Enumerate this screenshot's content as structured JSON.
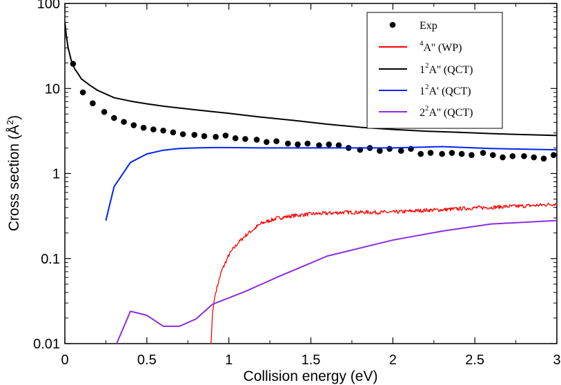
{
  "chart_data": {
    "type": "line",
    "xlabel": "Collision energy (eV)",
    "ylabel": "Cross section (Å",
    "ylabel_sup": "2",
    "ylabel_close": ")",
    "xlim": [
      0,
      3
    ],
    "ylim": [
      0.01,
      100
    ],
    "yscale": "log",
    "legend_position": "top-right",
    "x_ticks": [
      {
        "value": 0,
        "label": "0"
      },
      {
        "value": 0.5,
        "label": "0.5"
      },
      {
        "value": 1,
        "label": "1"
      },
      {
        "value": 1.5,
        "label": "1.5"
      },
      {
        "value": 2,
        "label": "2"
      },
      {
        "value": 2.5,
        "label": "2.5"
      },
      {
        "value": 3,
        "label": "3"
      }
    ],
    "y_ticks": [
      {
        "value": 0.01,
        "label": "0.01"
      },
      {
        "value": 0.1,
        "label": "0.1"
      },
      {
        "value": 1,
        "label": "1"
      },
      {
        "value": 10,
        "label": "10"
      },
      {
        "value": 100,
        "label": "100"
      }
    ],
    "series": [
      {
        "name": "Exp",
        "legend_sup": "",
        "legend_main": "Exp",
        "legend_tail": "",
        "kind": "scatter",
        "color": "#000000",
        "x": [
          0.05,
          0.11,
          0.17,
          0.24,
          0.3,
          0.36,
          0.42,
          0.48,
          0.54,
          0.6,
          0.66,
          0.72,
          0.79,
          0.85,
          0.92,
          0.98,
          1.04,
          1.1,
          1.17,
          1.23,
          1.29,
          1.36,
          1.42,
          1.48,
          1.55,
          1.61,
          1.67,
          1.73,
          1.8,
          1.86,
          1.92,
          1.98,
          2.05,
          2.11,
          2.17,
          2.23,
          2.3,
          2.36,
          2.42,
          2.48,
          2.55,
          2.61,
          2.67,
          2.73,
          2.8,
          2.86,
          2.92,
          2.98
        ],
        "y": [
          19.5,
          9.0,
          6.7,
          5.3,
          4.5,
          4.05,
          3.7,
          3.45,
          3.3,
          3.2,
          3.05,
          2.9,
          2.85,
          2.75,
          2.7,
          2.8,
          2.6,
          2.55,
          2.5,
          2.35,
          2.4,
          2.25,
          2.2,
          2.25,
          2.15,
          2.2,
          2.15,
          2.0,
          1.9,
          2.0,
          1.85,
          1.95,
          1.85,
          1.95,
          1.7,
          1.75,
          1.7,
          1.75,
          1.7,
          1.65,
          1.75,
          1.65,
          1.55,
          1.6,
          1.6,
          1.55,
          1.5,
          1.65
        ]
      },
      {
        "name": "4A'' (WP)",
        "legend_sup": "4",
        "legend_main": "A''",
        "legend_tail": " (WP)",
        "kind": "line",
        "noisy": true,
        "color": "#ff0000",
        "x": [
          0.89,
          0.9,
          0.91,
          0.92,
          0.93,
          0.94,
          0.95,
          0.96,
          0.97,
          0.98,
          0.99,
          1.0,
          1.02,
          1.04,
          1.06,
          1.08,
          1.1,
          1.12,
          1.15,
          1.18,
          1.2,
          1.25,
          1.3,
          1.35,
          1.4,
          1.5,
          1.6,
          1.7,
          1.8,
          1.9,
          2.0,
          2.1,
          2.2,
          2.3,
          2.4,
          2.5,
          2.6,
          2.7,
          2.8,
          2.9,
          3.0
        ],
        "y": [
          0.009,
          0.022,
          0.032,
          0.04,
          0.048,
          0.056,
          0.065,
          0.075,
          0.082,
          0.09,
          0.1,
          0.11,
          0.125,
          0.14,
          0.155,
          0.17,
          0.185,
          0.2,
          0.22,
          0.245,
          0.26,
          0.28,
          0.3,
          0.31,
          0.32,
          0.335,
          0.34,
          0.35,
          0.35,
          0.35,
          0.35,
          0.36,
          0.37,
          0.375,
          0.385,
          0.395,
          0.4,
          0.41,
          0.415,
          0.425,
          0.44
        ]
      },
      {
        "name": "12A'' (QCT)",
        "legend_sup": "2",
        "legend_main": "1",
        "legend_tail": "A'' (QCT)",
        "kind": "line",
        "color": "#000000",
        "x": [
          0,
          0.01,
          0.02,
          0.04,
          0.06,
          0.08,
          0.1,
          0.15,
          0.2,
          0.3,
          0.4,
          0.5,
          0.6,
          0.8,
          1.0,
          1.2,
          1.4,
          1.6,
          1.8,
          2.0,
          2.2,
          2.4,
          2.6,
          2.8,
          3.0
        ],
        "y": [
          60,
          40,
          30,
          21,
          17,
          15,
          13,
          11,
          9.5,
          7.8,
          7.1,
          6.6,
          6.2,
          5.6,
          5.1,
          4.6,
          4.2,
          3.8,
          3.5,
          3.3,
          3.15,
          3.05,
          2.95,
          2.87,
          2.8
        ]
      },
      {
        "name": "12A' (QCT)",
        "legend_sup": "2",
        "legend_main": "1",
        "legend_tail": "A' (QCT)",
        "kind": "line",
        "color": "#0022ee",
        "x": [
          0.25,
          0.3,
          0.4,
          0.5,
          0.6,
          0.7,
          0.8,
          0.9,
          1.0,
          1.2,
          1.4,
          1.6,
          1.8,
          2.0,
          2.3,
          2.6,
          3.0
        ],
        "y": [
          0.28,
          0.7,
          1.35,
          1.7,
          1.88,
          1.97,
          2.0,
          2.02,
          2.02,
          2.0,
          2.0,
          2.0,
          2.0,
          2.0,
          2.07,
          1.97,
          1.9
        ]
      },
      {
        "name": "22A'' (QCT)",
        "legend_sup": "2",
        "legend_main": "2",
        "legend_tail": "A'' (QCT)",
        "kind": "line",
        "color": "#8a2be2",
        "x": [
          0.3,
          0.4,
          0.5,
          0.6,
          0.7,
          0.8,
          0.9,
          1.1,
          1.3,
          1.6,
          2.0,
          2.3,
          2.6,
          3.0
        ],
        "y": [
          0.0085,
          0.024,
          0.0215,
          0.016,
          0.016,
          0.0195,
          0.029,
          0.041,
          0.061,
          0.107,
          0.165,
          0.21,
          0.255,
          0.28
        ]
      }
    ]
  }
}
